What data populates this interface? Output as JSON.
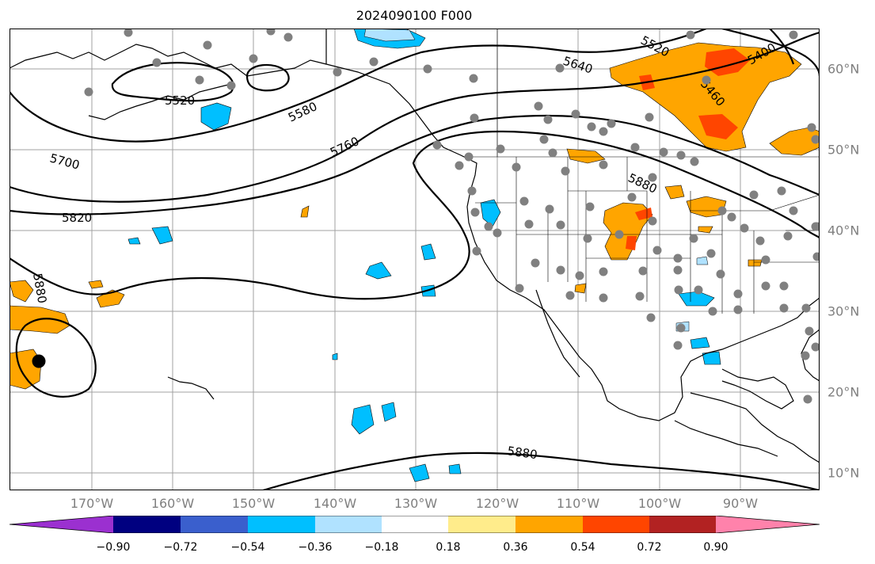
{
  "title": "2024090100 F000",
  "lon_labels": [
    "170°W",
    "160°W",
    "150°W",
    "140°W",
    "130°W",
    "120°W",
    "110°W",
    "100°W",
    "90°W"
  ],
  "lat_labels": [
    "60°N",
    "50°N",
    "40°N",
    "30°N",
    "20°N",
    "10°N"
  ],
  "contour_labels": [
    "5520",
    "5580",
    "5760",
    "5700",
    "5820",
    "5880",
    "5640",
    "5520",
    "5400",
    "5460",
    "5880",
    "5880"
  ],
  "colorbar": {
    "ticks": [
      "−0.90",
      "−0.72",
      "−0.54",
      "−0.36",
      "−0.18",
      "0.18",
      "0.36",
      "0.54",
      "0.72",
      "0.90"
    ],
    "colors": [
      "#9b30d0",
      "#000080",
      "#3a5fcd",
      "#00bfff",
      "#b0e2ff",
      "#ffffff",
      "#ffec8b",
      "#ffa500",
      "#ff4500",
      "#b22222",
      "#ff82ab"
    ]
  },
  "colors": {
    "axis_label": "#7f7f7f",
    "positive_fill": "#ffa500",
    "negative_fill": "#00bfff",
    "station_marker": "#808080"
  }
}
